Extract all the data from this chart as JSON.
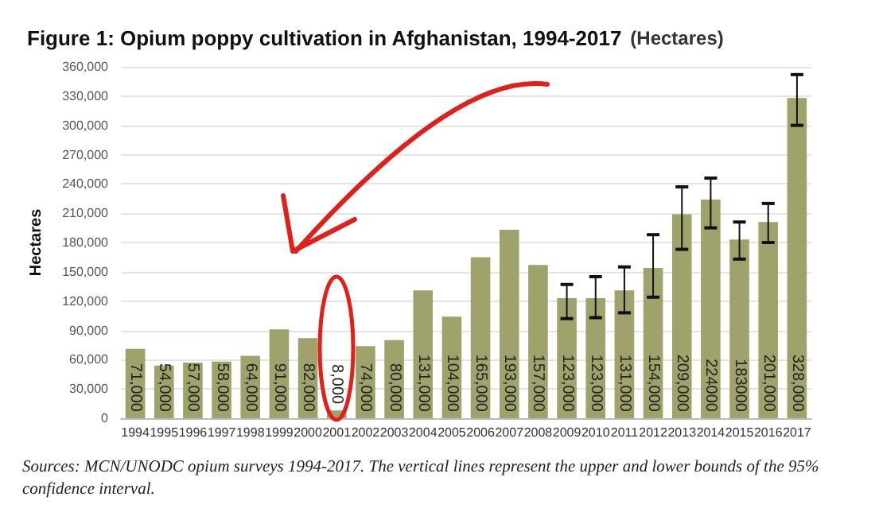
{
  "chart_data": {
    "type": "bar",
    "title": "Figure 1: Opium poppy cultivation in Afghanistan, 1994-2017",
    "subtitle": "(Hectares)",
    "ylabel": "Hectares",
    "categories": [
      "1994",
      "1995",
      "1996",
      "1997",
      "1998",
      "1999",
      "2000",
      "2001",
      "2002",
      "2003",
      "2004",
      "2005",
      "2006",
      "2007",
      "2008",
      "2009",
      "2010",
      "2011",
      "2012",
      "2013",
      "2014",
      "2015",
      "2016",
      "2017"
    ],
    "values": [
      71000,
      54000,
      57000,
      58000,
      64000,
      91000,
      82000,
      8000,
      74000,
      80000,
      131000,
      104000,
      165000,
      193000,
      157000,
      123000,
      123000,
      131000,
      154000,
      209000,
      224000,
      183000,
      201000,
      328000
    ],
    "value_labels": [
      "71,000",
      "54,000",
      "57,000",
      "58,000",
      "64,000",
      "91,000",
      "82,000",
      "8,000",
      "74,000",
      "80,000",
      "131,000",
      "104,000",
      "165,000",
      "193,000",
      "157,000",
      "123,000",
      "123,000",
      "131,000",
      "154,000",
      "209,000",
      "224000",
      "183000",
      "201,000",
      "328,000"
    ],
    "errors": [
      null,
      null,
      null,
      null,
      null,
      null,
      null,
      null,
      null,
      null,
      null,
      null,
      null,
      null,
      null,
      [
        102000,
        137000
      ],
      [
        103000,
        145000
      ],
      [
        108000,
        155000
      ],
      [
        124000,
        188000
      ],
      [
        173000,
        237000
      ],
      [
        195000,
        246000
      ],
      [
        163000,
        201000
      ],
      [
        180000,
        220000
      ],
      [
        300000,
        352000
      ]
    ],
    "color": "#9fa36b",
    "ylim": [
      0,
      360000
    ],
    "yticks": [
      0,
      {
        "value": 30000,
        "label": "30,000"
      },
      {
        "value": 60000,
        "label": "60,000"
      },
      {
        "value": 90000,
        "label": "90,000"
      },
      {
        "value": 120000,
        "label": "120,000"
      },
      {
        "value": 150000,
        "label": "150,000"
      },
      {
        "value": 180000,
        "label": "180,000"
      },
      {
        "value": 210000,
        "label": "210,000"
      },
      {
        "value": 240000,
        "label": "240,000"
      },
      {
        "value": 270000,
        "label": "270,000"
      },
      {
        "value": 300000,
        "label": "300,000"
      },
      {
        "value": 330000,
        "label": "330,000"
      },
      {
        "value": 360000,
        "label": "360,000"
      }
    ],
    "grid": "y",
    "annotations": [
      "Sources: MCN/UNODC opium surveys 1994-2017. The vertical lines represent the upper and lower bounds of the 95% confidence interval."
    ]
  }
}
